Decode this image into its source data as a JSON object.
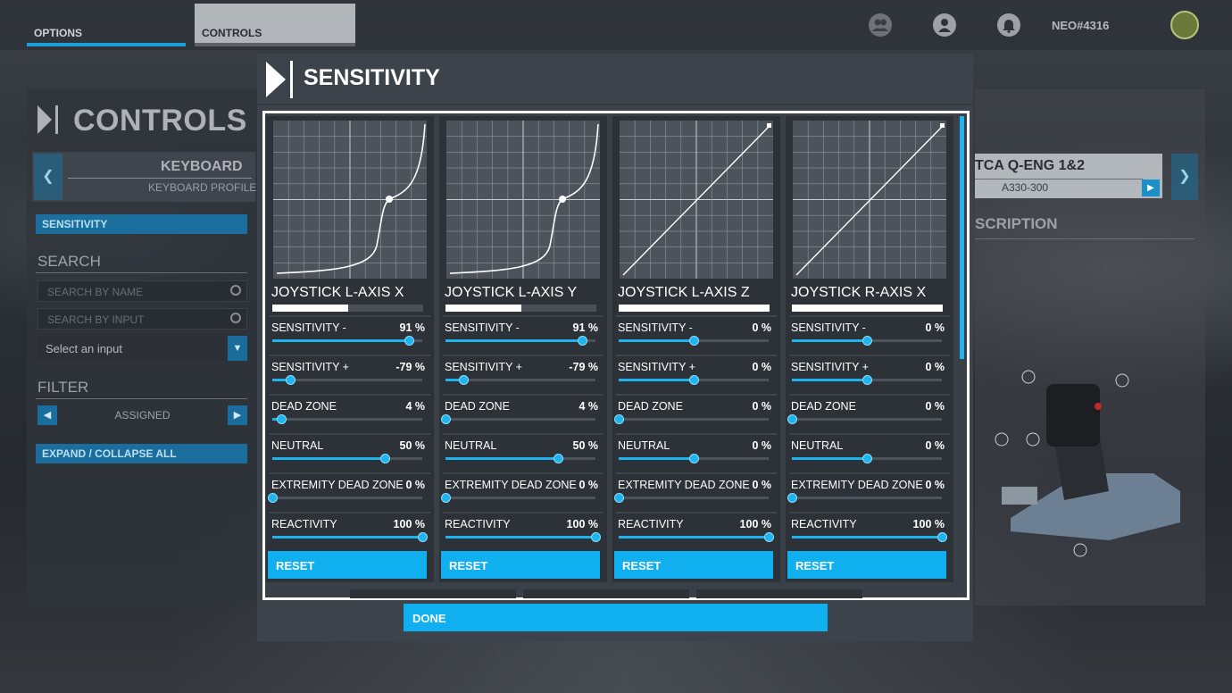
{
  "top_tabs": {
    "options": "OPTIONS",
    "controls": "CONTROLS"
  },
  "user": {
    "name": "NEO#4316"
  },
  "left_panel": {
    "title": "CONTROLS",
    "device_label": "KEYBOARD",
    "profile_label": "KEYBOARD PROFILE",
    "selected_category": "SENSITIVITY",
    "search_title": "SEARCH",
    "search_by_name_placeholder": "SEARCH BY NAME",
    "search_by_input_placeholder": "SEARCH BY INPUT",
    "select_input": "Select an input",
    "filter_title": "FILTER",
    "filter_value": "ASSIGNED",
    "expand_collapse": "EXPAND / COLLAPSE ALL"
  },
  "right_panel": {
    "device_title": "TCA Q-ENG 1&2",
    "device_sub": "A330-300",
    "description_title": "SCRIPTION"
  },
  "modal": {
    "title": "SENSITIVITY",
    "done_label": "DONE",
    "reset_label": "RESET",
    "row_labels": [
      "SENSITIVITY -",
      "SENSITIVITY +",
      "DEAD ZONE",
      "NEUTRAL",
      "EXTREMITY DEAD ZONE",
      "REACTIVITY"
    ],
    "cards": [
      {
        "axis": "JOYSTICK L-AXIS X",
        "input_position": 0.5,
        "curve": "custom",
        "values": [
          "91 %",
          "-79 %",
          "4 %",
          "50 %",
          "0 %",
          "100 %"
        ],
        "slider_levels": [
          0.91,
          0.12,
          0.06,
          0.75,
          0.0,
          1.0
        ]
      },
      {
        "axis": "JOYSTICK L-AXIS Y",
        "input_position": 0.5,
        "curve": "custom",
        "values": [
          "91 %",
          "-79 %",
          "4 %",
          "50 %",
          "0 %",
          "100 %"
        ],
        "slider_levels": [
          0.91,
          0.12,
          0.0,
          0.75,
          0.0,
          1.0
        ]
      },
      {
        "axis": "JOYSTICK L-AXIS Z",
        "input_position": 1.0,
        "curve": "linear",
        "values": [
          "0 %",
          "0 %",
          "0 %",
          "0 %",
          "0 %",
          "100 %"
        ],
        "slider_levels": [
          0.5,
          0.5,
          0.0,
          0.5,
          0.0,
          1.0
        ]
      },
      {
        "axis": "JOYSTICK R-AXIS X",
        "input_position": 1.0,
        "curve": "linear",
        "values": [
          "0 %",
          "0 %",
          "0 %",
          "0 %",
          "0 %",
          "100 %"
        ],
        "slider_levels": [
          0.5,
          0.5,
          0.0,
          0.5,
          0.0,
          1.0
        ]
      }
    ]
  },
  "colors": {
    "accent": "#10b0f0",
    "panel": "#3d434b",
    "card": "#2d3238"
  }
}
